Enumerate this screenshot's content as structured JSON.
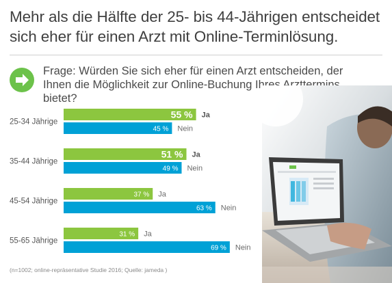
{
  "title": "Mehr als die Hälfte der 25- bis 44-Jährigen entscheidet sich eher für einen Arzt mit Online-Terminlösung.",
  "question": "Frage: Würden Sie sich eher für einen Arzt entscheiden, der Ihnen die Möglichkeit zur Online-Buchung Ihres Arzttermins bietet?",
  "footnote": "(n=1002; online-repräsentative Studie 2016; Quelle: jameda )",
  "colors": {
    "ja": "#8cc63f",
    "nein": "#00a1d6",
    "accent": "#6cc24a"
  },
  "icon": "arrow-right-icon",
  "chart_data": {
    "type": "bar",
    "orientation": "horizontal",
    "categories": [
      "25-34 Jährige",
      "35-44 Jährige",
      "45-54 Jährige",
      "55-65 Jährige"
    ],
    "series": [
      {
        "name": "Ja",
        "values": [
          55,
          51,
          37,
          31
        ],
        "labels": [
          "55 %",
          "51 %",
          "37 %",
          "31 %"
        ]
      },
      {
        "name": "Nein",
        "values": [
          45,
          49,
          63,
          69
        ],
        "labels": [
          "45 %",
          "49 %",
          "63 %",
          "69 %"
        ]
      }
    ],
    "unit": "%",
    "xlim": [
      0,
      100
    ]
  }
}
